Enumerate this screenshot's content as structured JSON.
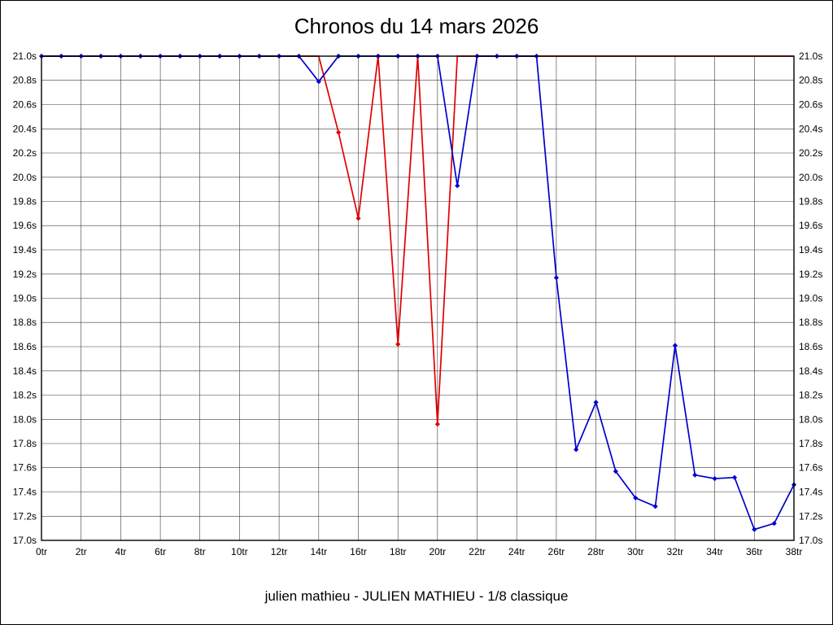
{
  "chart_data": {
    "type": "line",
    "title": "Chronos du 14 mars 2026",
    "caption": "julien mathieu - JULIEN MATHIEU - 1/8 classique",
    "xlabel": "",
    "ylabel": "",
    "ylim": [
      17.0,
      21.0
    ],
    "y_tick_step": 0.2,
    "y_tick_suffix": "s",
    "grid": true,
    "x": [
      0,
      1,
      2,
      3,
      4,
      5,
      6,
      7,
      8,
      9,
      10,
      11,
      12,
      13,
      14,
      15,
      16,
      17,
      18,
      19,
      20,
      21,
      22,
      23,
      24,
      25,
      26,
      27,
      28,
      29,
      30,
      31,
      32,
      33,
      34,
      35,
      36,
      37,
      38
    ],
    "x_ticks": [
      {
        "v": 0,
        "label": "0tr"
      },
      {
        "v": 2,
        "label": "2tr"
      },
      {
        "v": 4,
        "label": "4tr"
      },
      {
        "v": 6,
        "label": "6tr"
      },
      {
        "v": 8,
        "label": "8tr"
      },
      {
        "v": 10,
        "label": "10tr"
      },
      {
        "v": 12,
        "label": "12tr"
      },
      {
        "v": 14,
        "label": "14tr"
      },
      {
        "v": 16,
        "label": "16tr"
      },
      {
        "v": 18,
        "label": "18tr"
      },
      {
        "v": 20,
        "label": "20tr"
      },
      {
        "v": 22,
        "label": "22tr"
      },
      {
        "v": 24,
        "label": "24tr"
      },
      {
        "v": 26,
        "label": "26tr"
      },
      {
        "v": 28,
        "label": "28tr"
      },
      {
        "v": 30,
        "label": "30tr"
      },
      {
        "v": 32,
        "label": "32tr"
      },
      {
        "v": 34,
        "label": "34tr"
      },
      {
        "v": 36,
        "label": "36tr"
      },
      {
        "v": 38,
        "label": "38tr"
      }
    ],
    "series": [
      {
        "name": "red-series",
        "color": "#e00000",
        "markers": "list",
        "marker_points": [
          15,
          16,
          17,
          18,
          19,
          20
        ],
        "values": [
          21.0,
          21.0,
          21.0,
          21.0,
          21.0,
          21.0,
          21.0,
          21.0,
          21.0,
          21.0,
          21.0,
          21.0,
          21.0,
          21.0,
          21.0,
          20.37,
          19.66,
          21.0,
          18.62,
          21.0,
          17.96,
          21.0,
          21.0,
          21.0,
          21.0,
          21.0,
          21.0,
          21.0,
          21.0,
          21.0,
          21.0,
          21.0,
          21.0,
          21.0,
          21.0,
          21.0,
          21.0,
          21.0,
          21.0
        ]
      },
      {
        "name": "blue-series",
        "color": "#0000cc",
        "markers": "all",
        "marker_points": [],
        "values": [
          21.0,
          21.0,
          21.0,
          21.0,
          21.0,
          21.0,
          21.0,
          21.0,
          21.0,
          21.0,
          21.0,
          21.0,
          21.0,
          21.0,
          20.79,
          21.0,
          21.0,
          21.0,
          21.0,
          21.0,
          21.0,
          19.93,
          21.0,
          21.0,
          21.0,
          21.0,
          19.17,
          17.75,
          18.14,
          17.57,
          17.35,
          17.28,
          18.61,
          17.54,
          17.51,
          17.52,
          17.09,
          17.14,
          17.46
        ]
      }
    ]
  }
}
